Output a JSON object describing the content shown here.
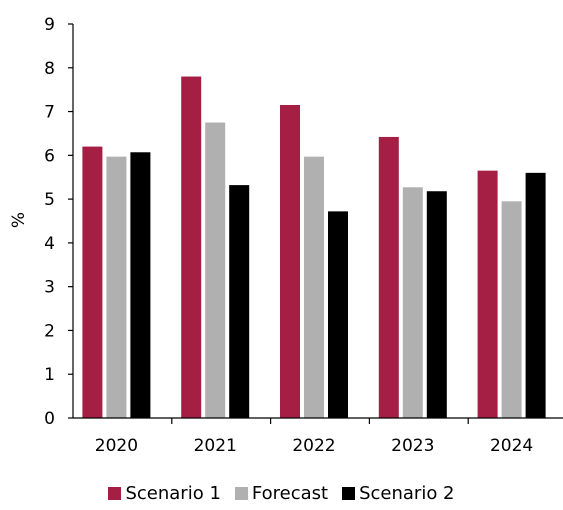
{
  "chart_data": {
    "type": "bar",
    "title": "",
    "xlabel": "",
    "ylabel": "%",
    "ylim": [
      0,
      9
    ],
    "yticks": [
      0,
      1,
      2,
      3,
      4,
      5,
      6,
      7,
      8,
      9
    ],
    "categories": [
      "2020",
      "2021",
      "2022",
      "2023",
      "2024"
    ],
    "series": [
      {
        "name": "Scenario 1",
        "color": "#a51f45",
        "values": [
          6.2,
          7.8,
          7.15,
          6.42,
          5.65
        ]
      },
      {
        "name": "Forecast",
        "color": "#b0b0b0",
        "values": [
          5.97,
          6.75,
          5.97,
          5.27,
          4.95
        ]
      },
      {
        "name": "Scenario 2",
        "color": "#000000",
        "values": [
          6.07,
          5.32,
          4.72,
          5.18,
          5.6
        ]
      }
    ],
    "grid": false,
    "legend_position": "bottom"
  }
}
